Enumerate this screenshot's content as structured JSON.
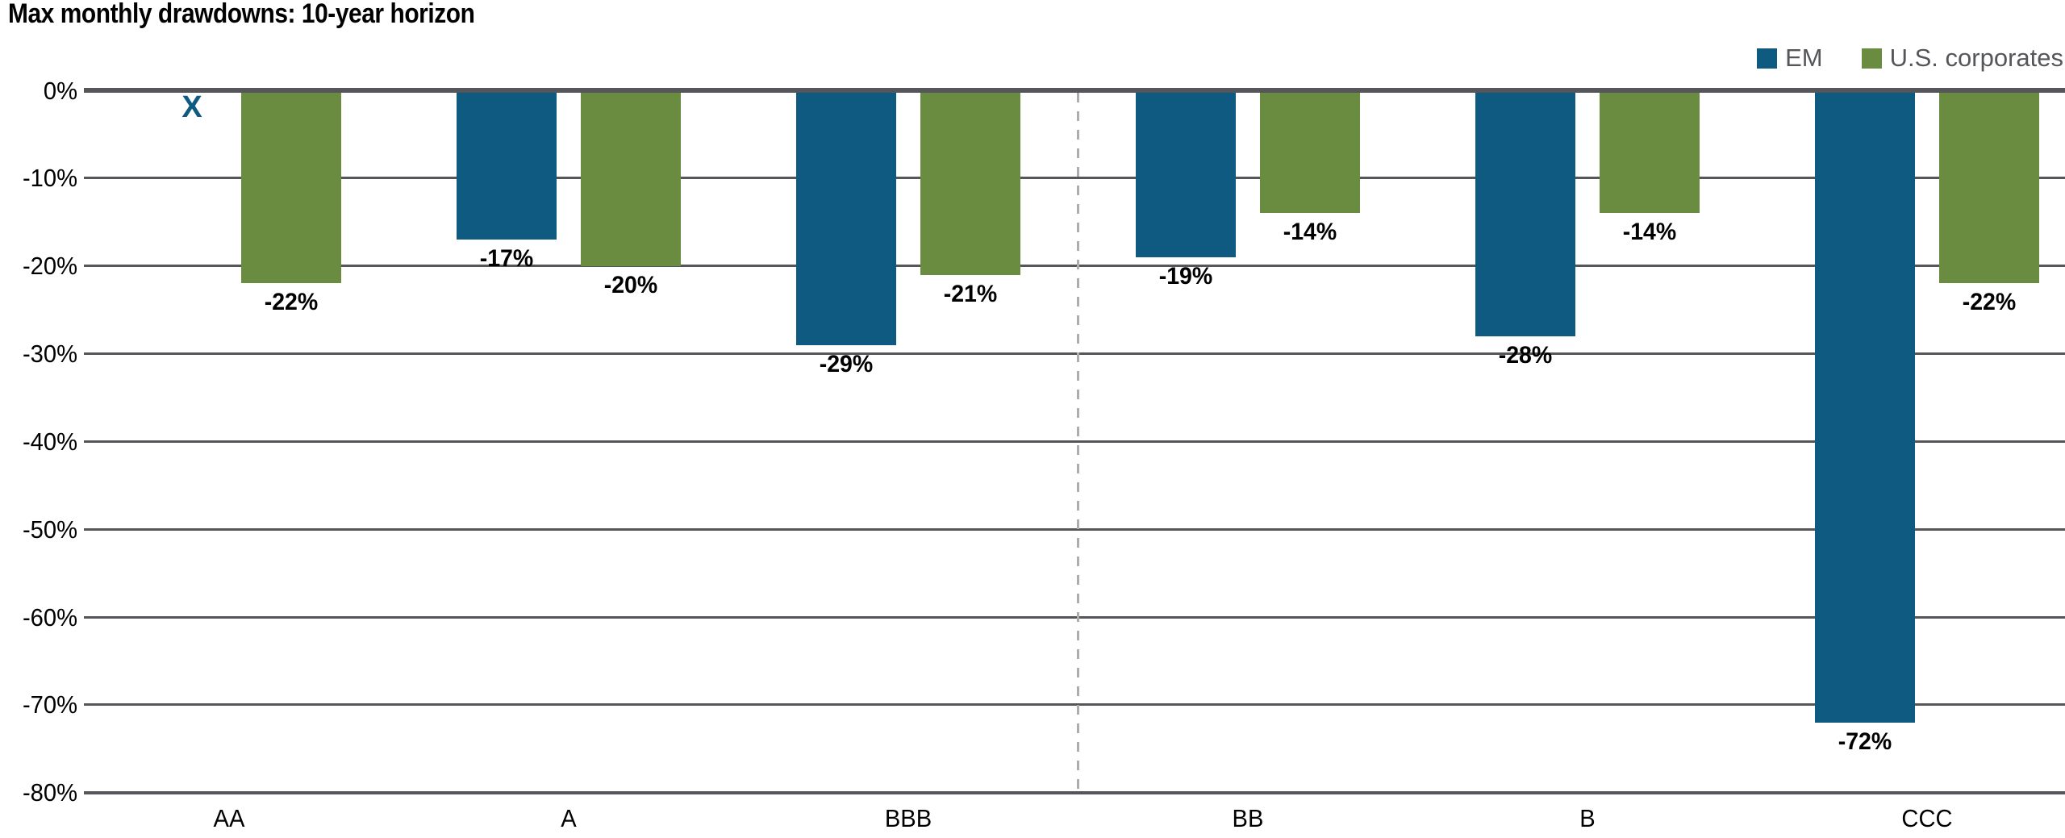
{
  "page": {
    "title": "Max monthly drawdowns: 10-year horizon"
  },
  "legend": {
    "items": [
      {
        "label": "EM",
        "color": "#0E5A80"
      },
      {
        "label": "U.S. corporates",
        "color": "#698C41"
      }
    ]
  },
  "chart_data": {
    "type": "bar",
    "title": "Max monthly drawdowns: 10-year horizon",
    "categories": [
      "AA",
      "A",
      "BBB",
      "BB",
      "B",
      "CCC"
    ],
    "series": [
      {
        "name": "EM",
        "color": "#0E5A80",
        "values": [
          null,
          -17,
          -29,
          -19,
          -28,
          -72
        ],
        "data_labels": [
          null,
          "-17%",
          "-29%",
          "-19%",
          "-28%",
          "-72%"
        ]
      },
      {
        "name": "U.S. corporates",
        "color": "#698C41",
        "values": [
          -22,
          -20,
          -21,
          -14,
          -14,
          -22
        ],
        "data_labels": [
          "-22%",
          "-20%",
          "-21%",
          "-14%",
          "-14%",
          "-22%"
        ]
      }
    ],
    "missing_data": {
      "category": "AA",
      "series": "EM",
      "marker": "X"
    },
    "y_axis": {
      "ticks": [
        "0%",
        "-10%",
        "-20%",
        "-30%",
        "-40%",
        "-50%",
        "-60%",
        "-70%",
        "-80%"
      ],
      "max": 0,
      "min": -80,
      "unit": "%"
    },
    "x_axis": {
      "label": ""
    },
    "divider": {
      "between": [
        "BBB",
        "BB"
      ],
      "style": "dashed"
    },
    "grid": true,
    "legend_position": "top-right"
  }
}
